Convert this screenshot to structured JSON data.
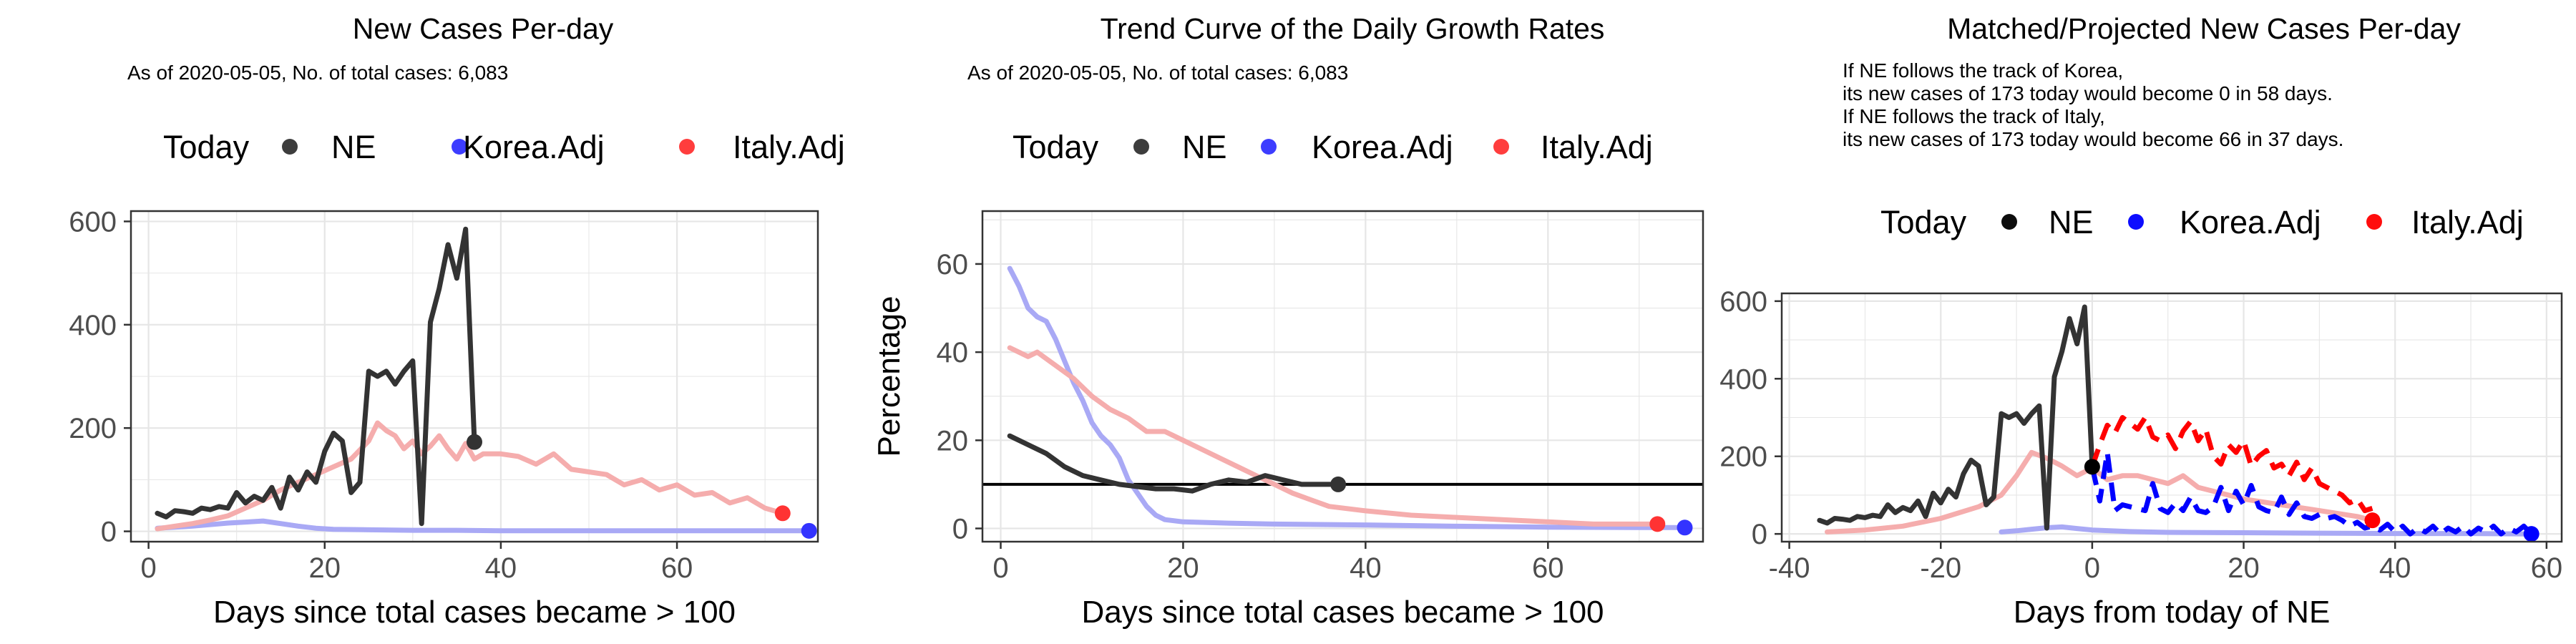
{
  "chart_data": [
    {
      "type": "line",
      "title": "New Cases Per-day",
      "subtitle": "As of 2020-05-05, No. of total cases: 6,083",
      "xlabel": "Days since total cases became > 100",
      "ylabel": "",
      "xlim": [
        -2,
        76
      ],
      "ylim": [
        -20,
        620
      ],
      "xticks": [
        0,
        20,
        40,
        60
      ],
      "yticks": [
        0,
        200,
        400,
        600
      ],
      "grid": true,
      "legend": {
        "position": "top",
        "title": "Today",
        "entries": [
          {
            "label": "NE",
            "color": "#333333"
          },
          {
            "label": "Korea.Adj",
            "color": "#3333ff"
          },
          {
            "label": "Italy.Adj",
            "color": "#ff3333"
          }
        ]
      },
      "series": [
        {
          "name": "Korea.Adj",
          "color": "#a9a9f5",
          "x": [
            1,
            3,
            5,
            7,
            9,
            11,
            13,
            15,
            17,
            19,
            21,
            25,
            30,
            35,
            40,
            45,
            50,
            55,
            60,
            65,
            70,
            75
          ],
          "y": [
            6,
            8,
            10,
            13,
            16,
            18,
            20,
            15,
            10,
            6,
            4,
            3,
            2,
            2,
            1,
            1,
            1,
            1,
            1,
            1,
            1,
            1
          ]
        },
        {
          "name": "Italy.Adj",
          "color": "#f5adad",
          "x": [
            1,
            3,
            5,
            7,
            9,
            11,
            13,
            15,
            17,
            19,
            21,
            23,
            25,
            26,
            27,
            28,
            29,
            30,
            31,
            32,
            33,
            34,
            35,
            36,
            37,
            38,
            40,
            42,
            44,
            46,
            48,
            50,
            52,
            54,
            56,
            58,
            60,
            62,
            64,
            66,
            68,
            70,
            72
          ],
          "y": [
            5,
            10,
            15,
            22,
            30,
            45,
            60,
            80,
            95,
            110,
            125,
            140,
            175,
            210,
            195,
            185,
            160,
            175,
            150,
            165,
            185,
            160,
            140,
            170,
            140,
            150,
            150,
            145,
            130,
            150,
            120,
            115,
            110,
            90,
            100,
            80,
            90,
            70,
            75,
            55,
            65,
            45,
            35
          ]
        },
        {
          "name": "NE",
          "color": "#333333",
          "x": [
            1,
            2,
            3,
            4,
            5,
            6,
            7,
            8,
            9,
            10,
            11,
            12,
            13,
            14,
            15,
            16,
            17,
            18,
            19,
            20,
            21,
            22,
            23,
            24,
            25,
            26,
            27,
            28,
            29,
            30,
            31,
            32,
            33,
            34,
            35,
            36,
            37
          ],
          "y": [
            35,
            28,
            40,
            38,
            35,
            45,
            42,
            48,
            45,
            75,
            55,
            68,
            60,
            85,
            45,
            105,
            80,
            115,
            95,
            155,
            190,
            175,
            75,
            95,
            310,
            300,
            310,
            285,
            310,
            330,
            15,
            405,
            470,
            555,
            490,
            585,
            173
          ]
        }
      ],
      "markers": [
        {
          "series": "NE",
          "x": 37,
          "y": 173,
          "color": "#333333"
        },
        {
          "series": "Italy.Adj",
          "x": 72,
          "y": 35,
          "color": "#ff3333"
        },
        {
          "series": "Korea.Adj",
          "x": 75,
          "y": 1,
          "color": "#3333ff"
        }
      ]
    },
    {
      "type": "line",
      "title": "Trend Curve of the Daily Growth Rates",
      "subtitle": "As of 2020-05-05, No. of total cases: 6,083",
      "xlabel": "Days since total cases became > 100",
      "ylabel": "Percentage",
      "xlim": [
        -2,
        77
      ],
      "ylim": [
        -3,
        72
      ],
      "xticks": [
        0,
        20,
        40,
        60
      ],
      "yticks": [
        0,
        20,
        40,
        60
      ],
      "hline": 10,
      "grid": true,
      "legend": {
        "position": "top",
        "title": "Today",
        "entries": [
          {
            "label": "NE",
            "color": "#333333"
          },
          {
            "label": "Korea.Adj",
            "color": "#3333ff"
          },
          {
            "label": "Italy.Adj",
            "color": "#ff3333"
          }
        ]
      },
      "series": [
        {
          "name": "Korea.Adj",
          "color": "#a9a9f5",
          "x": [
            1,
            2,
            3,
            4,
            5,
            6,
            7,
            8,
            9,
            10,
            11,
            12,
            13,
            14,
            15,
            16,
            17,
            18,
            20,
            25,
            30,
            40,
            50,
            60,
            70,
            75
          ],
          "y": [
            59,
            55,
            50,
            48,
            47,
            43,
            38,
            33,
            29,
            24,
            21,
            19,
            16,
            11,
            8,
            5,
            3,
            2,
            1.5,
            1.2,
            1,
            0.8,
            0.5,
            0.3,
            0.2,
            0.2
          ]
        },
        {
          "name": "Italy.Adj",
          "color": "#f5adad",
          "x": [
            1,
            3,
            4,
            6,
            8,
            10,
            12,
            14,
            16,
            18,
            20,
            22,
            24,
            26,
            28,
            30,
            32,
            34,
            36,
            40,
            45,
            50,
            55,
            60,
            65,
            70,
            72
          ],
          "y": [
            41,
            39,
            40,
            37,
            34,
            30,
            27,
            25,
            22,
            22,
            20,
            18,
            16,
            14,
            12,
            10,
            8,
            6.5,
            5,
            4,
            3,
            2.5,
            2,
            1.5,
            1,
            1,
            1
          ]
        },
        {
          "name": "NE",
          "color": "#333333",
          "x": [
            1,
            3,
            5,
            7,
            9,
            11,
            13,
            15,
            17,
            19,
            21,
            23,
            25,
            27,
            29,
            31,
            33,
            35,
            37
          ],
          "y": [
            21,
            19,
            17,
            14,
            12,
            11,
            10,
            9.5,
            9,
            9,
            8.5,
            10,
            11,
            10.5,
            12,
            11,
            10,
            10,
            10
          ]
        }
      ],
      "markers": [
        {
          "series": "NE",
          "x": 37,
          "y": 10,
          "color": "#333333"
        },
        {
          "series": "Italy.Adj",
          "x": 72,
          "y": 1,
          "color": "#ff3333"
        },
        {
          "series": "Korea.Adj",
          "x": 75,
          "y": 0.2,
          "color": "#3333ff"
        }
      ]
    },
    {
      "type": "line",
      "title": "Matched/Projected New Cases Per-day",
      "annotations": [
        "If NE follows the track of Korea,",
        "its new cases of 173 today would become 0 in 58 days.",
        "If NE follows the track of Italy,",
        "its new cases of 173 today would become 66 in 37 days."
      ],
      "xlabel": "Days from today of NE",
      "ylabel": "",
      "xlim": [
        -41,
        62
      ],
      "ylim": [
        -20,
        620
      ],
      "xticks": [
        -40,
        -20,
        0,
        20,
        40,
        60
      ],
      "yticks": [
        0,
        200,
        400,
        600
      ],
      "grid": true,
      "legend": {
        "position": "top",
        "title": "Today",
        "entries": [
          {
            "label": "NE",
            "color": "#000000"
          },
          {
            "label": "Korea.Adj",
            "color": "#0000ff"
          },
          {
            "label": "Italy.Adj",
            "color": "#ff0000"
          }
        ]
      },
      "series": [
        {
          "name": "Korea.Adj (matched)",
          "color": "#a9a9f5",
          "x": [
            -12,
            -10,
            -8,
            -6,
            -4,
            -2,
            0,
            5,
            10,
            20,
            30,
            40,
            50,
            58
          ],
          "y": [
            5,
            8,
            12,
            16,
            18,
            14,
            10,
            6,
            4,
            3,
            2,
            1,
            1,
            0
          ]
        },
        {
          "name": "Italy.Adj (matched)",
          "color": "#f5adad",
          "x": [
            -35,
            -30,
            -25,
            -20,
            -15,
            -12,
            -10,
            -8,
            -6,
            -4,
            -2,
            0,
            2,
            4,
            6,
            8,
            10,
            12,
            14,
            16,
            18,
            20,
            25,
            30,
            35,
            37
          ],
          "y": [
            5,
            10,
            20,
            40,
            70,
            100,
            150,
            210,
            195,
            175,
            150,
            170,
            140,
            150,
            150,
            140,
            130,
            150,
            120,
            110,
            100,
            90,
            75,
            60,
            45,
            35
          ]
        },
        {
          "name": "NE",
          "color": "#333333",
          "x": [
            -36,
            -35,
            -34,
            -33,
            -32,
            -31,
            -30,
            -29,
            -28,
            -27,
            -26,
            -25,
            -24,
            -23,
            -22,
            -21,
            -20,
            -19,
            -18,
            -17,
            -16,
            -15,
            -14,
            -13,
            -12,
            -11,
            -10,
            -9,
            -8,
            -7,
            -6,
            -5,
            -4,
            -3,
            -2,
            -1,
            0
          ],
          "y": [
            35,
            28,
            40,
            38,
            35,
            45,
            42,
            48,
            45,
            75,
            55,
            68,
            60,
            85,
            45,
            105,
            80,
            115,
            95,
            155,
            190,
            175,
            75,
            95,
            310,
            300,
            310,
            285,
            310,
            330,
            15,
            405,
            470,
            555,
            490,
            585,
            173
          ]
        },
        {
          "name": "Korea.Adj (projected)",
          "color": "#0000ff",
          "dashed": true,
          "x": [
            0,
            1,
            2,
            3,
            4,
            5,
            6,
            7,
            8,
            9,
            10,
            11,
            12,
            13,
            14,
            15,
            16,
            17,
            18,
            19,
            20,
            21,
            22,
            23,
            24,
            25,
            26,
            27,
            28,
            29,
            30,
            31,
            32,
            33,
            34,
            35,
            36,
            37,
            38,
            39,
            40,
            41,
            42,
            43,
            44,
            45,
            46,
            47,
            48,
            49,
            50,
            51,
            52,
            53,
            54,
            55,
            56,
            57,
            58
          ],
          "y": [
            173,
            85,
            210,
            60,
            75,
            70,
            65,
            60,
            130,
            65,
            55,
            80,
            60,
            95,
            60,
            55,
            70,
            120,
            60,
            110,
            75,
            125,
            70,
            60,
            55,
            95,
            50,
            80,
            45,
            40,
            50,
            40,
            45,
            35,
            20,
            30,
            15,
            20,
            10,
            25,
            5,
            20,
            0,
            15,
            5,
            20,
            0,
            15,
            5,
            20,
            0,
            15,
            5,
            20,
            0,
            15,
            5,
            20,
            0
          ]
        },
        {
          "name": "Italy.Adj (projected)",
          "color": "#ff0000",
          "dashed": true,
          "x": [
            0,
            1,
            2,
            3,
            4,
            5,
            6,
            7,
            8,
            9,
            10,
            11,
            12,
            13,
            14,
            15,
            16,
            17,
            18,
            19,
            20,
            21,
            22,
            23,
            24,
            25,
            26,
            27,
            28,
            29,
            30,
            31,
            32,
            33,
            34,
            35,
            36,
            37
          ],
          "y": [
            173,
            230,
            280,
            260,
            300,
            285,
            270,
            300,
            250,
            240,
            255,
            220,
            265,
            290,
            240,
            270,
            200,
            180,
            230,
            210,
            240,
            175,
            200,
            215,
            170,
            180,
            150,
            185,
            140,
            170,
            130,
            120,
            110,
            100,
            80,
            90,
            60,
            66
          ]
        }
      ],
      "markers": [
        {
          "series": "NE",
          "x": 0,
          "y": 173,
          "color": "#000000"
        },
        {
          "series": "Italy.Adj",
          "x": 37,
          "y": 35,
          "color": "#ff0000"
        },
        {
          "series": "Korea.Adj",
          "x": 58,
          "y": 0,
          "color": "#0000ff"
        }
      ]
    }
  ]
}
